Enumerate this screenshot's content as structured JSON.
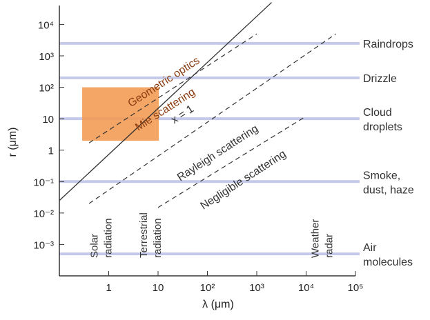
{
  "chart_data": {
    "type": "line",
    "xlabel": "λ (μm)",
    "ylabel": "r (μm)",
    "x_scale": "log",
    "y_scale": "log",
    "xlim": [
      0.1,
      100000
    ],
    "ylim": [
      0.0001,
      40000
    ],
    "x_ticks": [
      {
        "value": 1,
        "label": "1"
      },
      {
        "value": 10,
        "label": "10"
      },
      {
        "value": 100,
        "label": "10²"
      },
      {
        "value": 1000,
        "label": "10³"
      },
      {
        "value": 10000,
        "label": "10⁴"
      },
      {
        "value": 100000,
        "label": "10⁵"
      }
    ],
    "y_ticks": [
      {
        "value": 0.001,
        "label": "10⁻³"
      },
      {
        "value": 0.01,
        "label": "10⁻²"
      },
      {
        "value": 0.1,
        "label": "10⁻¹"
      },
      {
        "value": 1,
        "label": "1"
      },
      {
        "value": 10,
        "label": "10"
      },
      {
        "value": 100,
        "label": "10²"
      },
      {
        "value": 1000,
        "label": "10³"
      },
      {
        "value": 10000,
        "label": "10⁴"
      }
    ],
    "categories": [
      {
        "r": 2500,
        "label": [
          "Raindrops"
        ]
      },
      {
        "r": 200,
        "label": [
          "Drizzle"
        ]
      },
      {
        "r": 10,
        "label": [
          "Cloud",
          "droplets"
        ]
      },
      {
        "r": 0.1,
        "label": [
          "Smoke,",
          "dust, haze"
        ]
      },
      {
        "r": 0.0005,
        "label": [
          "Air",
          "molecules"
        ]
      }
    ],
    "lines": [
      {
        "style": "solid",
        "points": [
          [
            0.1,
            0.025
          ],
          [
            2000,
            50000
          ]
        ]
      },
      {
        "style": "dashed",
        "points": [
          [
            0.4,
            1.7
          ],
          [
            1000,
            5000
          ]
        ]
      },
      {
        "style": "dashed",
        "points": [
          [
            0.4,
            0.02
          ],
          [
            40000,
            5000
          ]
        ]
      },
      {
        "style": "dashed",
        "points": [
          [
            10,
            0.015
          ],
          [
            10000,
            12
          ]
        ]
      }
    ],
    "regions": [
      {
        "label": "Geometric optics",
        "rotate": true
      },
      {
        "label": "Mie scattering",
        "rotate": true
      },
      {
        "label": "x = 1",
        "rotate": true
      },
      {
        "label": "Rayleigh scattering",
        "rotate": true
      },
      {
        "label": "Negligible scattering",
        "rotate": true
      }
    ],
    "highlight_box": {
      "x": [
        0.4,
        10
      ],
      "y": [
        2,
        100
      ],
      "color": "#f39a52"
    },
    "bands": [
      {
        "x": 1,
        "label": [
          "Solar",
          "radiation"
        ]
      },
      {
        "x": 10,
        "label": [
          "Terrestrial",
          "radiation"
        ]
      },
      {
        "x": 30000,
        "label": [
          "Weather",
          "radar"
        ]
      }
    ],
    "colors": {
      "category_line": "#c4c9ea",
      "axis": "#333333",
      "line": "#333333"
    }
  }
}
